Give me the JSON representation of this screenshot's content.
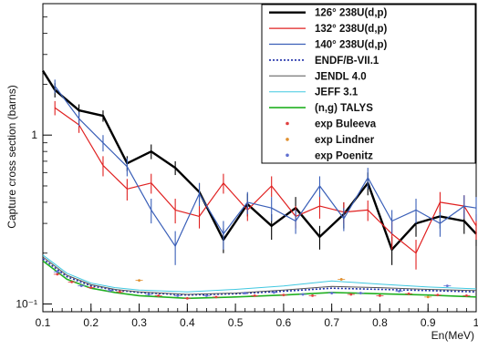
{
  "chart_data": {
    "type": "line",
    "title": "",
    "xlabel": "En(MeV)",
    "ylabel": "Capture cross section (barns)",
    "xlim": [
      0.1,
      1.0
    ],
    "ylim": [
      0.09,
      6.0
    ],
    "yscale": "log",
    "grid": false,
    "legend_position": "top-right",
    "x_ticks": [
      {
        "v": 0.1,
        "label": "0.1"
      },
      {
        "v": 0.2,
        "label": "0.2"
      },
      {
        "v": 0.3,
        "label": "0.3"
      },
      {
        "v": 0.4,
        "label": "0.4"
      },
      {
        "v": 0.5,
        "label": "0.5"
      },
      {
        "v": 0.6,
        "label": "0.6"
      },
      {
        "v": 0.7,
        "label": "0.7"
      },
      {
        "v": 0.8,
        "label": "0.8"
      },
      {
        "v": 0.9,
        "label": "0.9"
      },
      {
        "v": 1.0,
        "label": "1"
      }
    ],
    "y_ticks": [
      {
        "v": 0.1,
        "label": "10⁻¹"
      },
      {
        "v": 1,
        "label": "1"
      }
    ],
    "series": [
      {
        "name": "126° 238U(d,p)",
        "color": "#000000",
        "width": 2.4,
        "style": "solid",
        "x": [
          0.1,
          0.125,
          0.175,
          0.225,
          0.275,
          0.325,
          0.375,
          0.425,
          0.475,
          0.525,
          0.575,
          0.625,
          0.675,
          0.725,
          0.775,
          0.825,
          0.875,
          0.925,
          0.975,
          1.0
        ],
        "y": [
          2.4,
          1.85,
          1.4,
          1.3,
          0.68,
          0.8,
          0.64,
          0.46,
          0.24,
          0.39,
          0.29,
          0.37,
          0.25,
          0.34,
          0.52,
          0.21,
          0.3,
          0.33,
          0.31,
          0.26
        ],
        "yerr": [
          0.0,
          0.18,
          0.12,
          0.1,
          0.07,
          0.08,
          0.06,
          0.06,
          0.04,
          0.06,
          0.05,
          0.06,
          0.04,
          0.06,
          0.08,
          0.04,
          0.05,
          0.05,
          0.05,
          0.04
        ]
      },
      {
        "name": "132° 238U(d,p)",
        "color": "#e02020",
        "width": 1.2,
        "style": "solid",
        "x": [
          0.125,
          0.175,
          0.225,
          0.275,
          0.325,
          0.375,
          0.425,
          0.475,
          0.525,
          0.575,
          0.625,
          0.675,
          0.725,
          0.775,
          0.825,
          0.875,
          0.925,
          0.975,
          1.0
        ],
        "y": [
          1.45,
          1.15,
          0.66,
          0.48,
          0.52,
          0.36,
          0.33,
          0.52,
          0.36,
          0.5,
          0.33,
          0.38,
          0.35,
          0.36,
          0.26,
          0.2,
          0.4,
          0.38,
          0.29
        ],
        "yerr": [
          0.14,
          0.12,
          0.09,
          0.07,
          0.07,
          0.06,
          0.05,
          0.07,
          0.05,
          0.07,
          0.05,
          0.06,
          0.05,
          0.05,
          0.05,
          0.04,
          0.06,
          0.06,
          0.05
        ]
      },
      {
        "name": "140° 238U(d,p)",
        "color": "#3a5fb8",
        "width": 1.2,
        "style": "solid",
        "x": [
          0.125,
          0.175,
          0.225,
          0.275,
          0.325,
          0.375,
          0.425,
          0.475,
          0.525,
          0.575,
          0.625,
          0.675,
          0.725,
          0.775,
          0.825,
          0.875,
          0.925,
          0.975,
          1.0
        ],
        "y": [
          1.95,
          1.25,
          0.9,
          0.65,
          0.36,
          0.22,
          0.45,
          0.26,
          0.4,
          0.37,
          0.31,
          0.5,
          0.32,
          0.56,
          0.31,
          0.36,
          0.3,
          0.38,
          0.37
        ],
        "yerr": [
          0.18,
          0.12,
          0.1,
          0.08,
          0.06,
          0.05,
          0.07,
          0.05,
          0.06,
          0.06,
          0.05,
          0.07,
          0.05,
          0.08,
          0.05,
          0.06,
          0.05,
          0.06,
          0.06
        ]
      },
      {
        "name": "ENDF/B-VII.1",
        "color": "#1f2fa8",
        "width": 1.6,
        "style": "dotted",
        "x": [
          0.1,
          0.15,
          0.2,
          0.25,
          0.3,
          0.4,
          0.5,
          0.6,
          0.7,
          0.8,
          0.9,
          1.0
        ],
        "y": [
          0.185,
          0.145,
          0.128,
          0.121,
          0.117,
          0.113,
          0.115,
          0.119,
          0.124,
          0.122,
          0.12,
          0.118
        ]
      },
      {
        "name": "JENDL 4.0",
        "color": "#555555",
        "width": 1.0,
        "style": "solid",
        "x": [
          0.1,
          0.15,
          0.2,
          0.25,
          0.3,
          0.4,
          0.5,
          0.6,
          0.7,
          0.8,
          0.9,
          1.0
        ],
        "y": [
          0.19,
          0.148,
          0.13,
          0.122,
          0.118,
          0.114,
          0.116,
          0.121,
          0.127,
          0.125,
          0.122,
          0.12
        ]
      },
      {
        "name": "JEFF 3.1",
        "color": "#40c8e0",
        "width": 1.0,
        "style": "solid",
        "x": [
          0.1,
          0.15,
          0.2,
          0.25,
          0.3,
          0.4,
          0.5,
          0.6,
          0.7,
          0.8,
          0.9,
          1.0
        ],
        "y": [
          0.195,
          0.152,
          0.133,
          0.125,
          0.121,
          0.118,
          0.122,
          0.128,
          0.137,
          0.131,
          0.126,
          0.123
        ]
      },
      {
        "name": "(n,g) TALYS",
        "color": "#20b020",
        "width": 1.6,
        "style": "solid",
        "x": [
          0.1,
          0.15,
          0.2,
          0.25,
          0.3,
          0.4,
          0.5,
          0.6,
          0.7,
          0.8,
          0.9,
          1.0
        ],
        "y": [
          0.18,
          0.14,
          0.124,
          0.117,
          0.112,
          0.108,
          0.11,
          0.113,
          0.117,
          0.115,
          0.113,
          0.11
        ]
      }
    ],
    "scatter_series": [
      {
        "name": "exp Buleeva",
        "color": "#e04040",
        "x": [
          0.13,
          0.16,
          0.2,
          0.26,
          0.34,
          0.4,
          0.46,
          0.54,
          0.6,
          0.66,
          0.74,
          0.8,
          0.86,
          0.92,
          0.98
        ],
        "y": [
          0.15,
          0.135,
          0.125,
          0.118,
          0.112,
          0.108,
          0.11,
          0.112,
          0.113,
          0.112,
          0.114,
          0.112,
          0.115,
          0.113,
          0.112
        ]
      },
      {
        "name": "exp Lindner",
        "color": "#e09030",
        "x": [
          0.3,
          0.72,
          0.9
        ],
        "y": [
          0.138,
          0.14,
          0.11
        ]
      },
      {
        "name": "exp Poenitz",
        "color": "#6070d0",
        "x": [
          0.13,
          0.18,
          0.24,
          0.32,
          0.38,
          0.44,
          0.52,
          0.58,
          0.64,
          0.7,
          0.76,
          0.84,
          0.94
        ],
        "y": [
          0.155,
          0.128,
          0.12,
          0.114,
          0.112,
          0.112,
          0.116,
          0.117,
          0.114,
          0.116,
          0.116,
          0.119,
          0.128
        ]
      }
    ]
  }
}
